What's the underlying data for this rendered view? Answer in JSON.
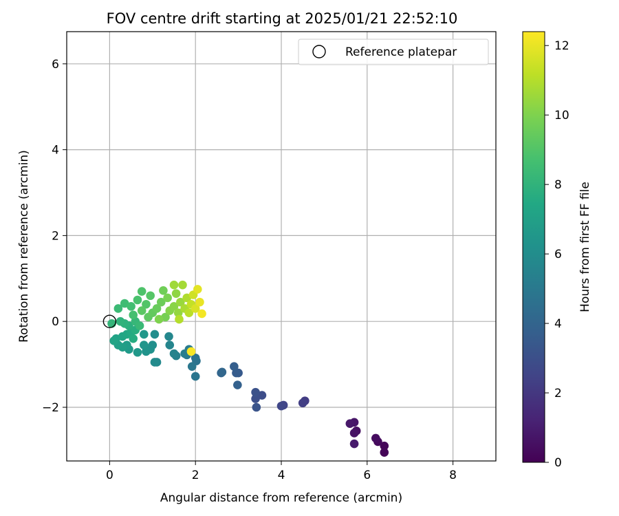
{
  "chart_data": {
    "type": "scatter",
    "title": "FOV centre drift starting at 2025/01/21 22:52:10",
    "xlabel": "Angular distance from reference (arcmin)",
    "ylabel": "Rotation from reference (arcmin)",
    "xlim": [
      -1.0,
      9.0
    ],
    "ylim": [
      -3.25,
      6.75
    ],
    "xticks": [
      0,
      2,
      4,
      6,
      8
    ],
    "yticks": [
      -2,
      0,
      2,
      4,
      6
    ],
    "xtick_labels": [
      "0",
      "2",
      "4",
      "6",
      "8"
    ],
    "ytick_labels": [
      "−2",
      "0",
      "2",
      "4",
      "6"
    ],
    "grid": true,
    "legend": {
      "position": "top-right",
      "entries": [
        "Reference platepar"
      ]
    },
    "reference_point": {
      "x": 0,
      "y": 0,
      "label": "Reference platepar"
    },
    "colorbar": {
      "label": "Hours from first FF file",
      "colormap": "viridis",
      "range": [
        0,
        12.4
      ],
      "ticks": [
        0,
        2,
        4,
        6,
        8,
        10,
        12
      ],
      "tick_labels": [
        "0",
        "2",
        "4",
        "6",
        "8",
        "10",
        "12"
      ]
    },
    "series": [
      {
        "points": [
          [
            6.4,
            -3.05,
            0.1
          ],
          [
            6.4,
            -2.9,
            0.2
          ],
          [
            6.25,
            -2.8,
            0.3
          ],
          [
            6.2,
            -2.72,
            0.4
          ],
          [
            5.75,
            -2.55,
            0.5
          ],
          [
            5.7,
            -2.6,
            0.6
          ],
          [
            5.7,
            -2.35,
            0.7
          ],
          [
            5.6,
            -2.38,
            0.8
          ],
          [
            5.7,
            -2.85,
            0.9
          ],
          [
            4.55,
            -1.85,
            2.2
          ],
          [
            4.5,
            -1.9,
            2.3
          ],
          [
            4.05,
            -1.95,
            2.5
          ],
          [
            4.0,
            -1.97,
            2.6
          ],
          [
            3.55,
            -1.72,
            2.9
          ],
          [
            3.4,
            -1.8,
            3.0
          ],
          [
            3.4,
            -1.65,
            3.1
          ],
          [
            3.42,
            -2.0,
            3.2
          ],
          [
            3.0,
            -1.2,
            3.5
          ],
          [
            2.95,
            -1.2,
            3.6
          ],
          [
            2.9,
            -1.05,
            3.7
          ],
          [
            2.98,
            -1.48,
            3.8
          ],
          [
            2.6,
            -1.2,
            4.0
          ],
          [
            2.62,
            -1.18,
            4.1
          ],
          [
            2.0,
            -0.85,
            4.6
          ],
          [
            2.02,
            -0.92,
            4.7
          ],
          [
            2.0,
            -1.28,
            4.8
          ],
          [
            1.92,
            -1.05,
            4.9
          ],
          [
            1.8,
            -0.78,
            5.0
          ],
          [
            1.85,
            -0.65,
            5.1
          ],
          [
            1.75,
            -0.75,
            5.2
          ],
          [
            1.55,
            -0.8,
            5.4
          ],
          [
            1.5,
            -0.75,
            5.5
          ],
          [
            1.4,
            -0.55,
            5.6
          ],
          [
            1.38,
            -0.35,
            5.7
          ],
          [
            1.1,
            -0.95,
            5.8
          ],
          [
            1.05,
            -0.95,
            5.9
          ],
          [
            1.05,
            -0.3,
            6.0
          ],
          [
            1.0,
            -0.55,
            6.1
          ],
          [
            0.95,
            -0.65,
            6.2
          ],
          [
            0.85,
            -0.7,
            6.3
          ],
          [
            0.8,
            -0.55,
            6.4
          ],
          [
            0.8,
            -0.3,
            6.5
          ],
          [
            0.65,
            -0.72,
            6.6
          ],
          [
            0.45,
            -0.65,
            6.7
          ],
          [
            0.4,
            -0.55,
            6.8
          ],
          [
            0.3,
            -0.6,
            6.9
          ],
          [
            0.2,
            -0.55,
            7.0
          ],
          [
            0.15,
            -0.4,
            7.1
          ],
          [
            0.1,
            -0.45,
            7.2
          ],
          [
            0.3,
            -0.35,
            7.3
          ],
          [
            0.4,
            -0.3,
            7.4
          ],
          [
            0.5,
            -0.25,
            7.5
          ],
          [
            0.55,
            -0.4,
            7.6
          ],
          [
            0.6,
            -0.2,
            7.7
          ],
          [
            0.45,
            -0.1,
            7.8
          ],
          [
            0.35,
            -0.05,
            7.9
          ],
          [
            0.25,
            0.0,
            8.0
          ],
          [
            0.05,
            -0.05,
            8.1
          ],
          [
            0.6,
            0.0,
            8.2
          ],
          [
            0.7,
            -0.1,
            8.3
          ],
          [
            0.2,
            0.3,
            8.4
          ],
          [
            0.35,
            0.42,
            8.5
          ],
          [
            0.5,
            0.35,
            8.6
          ],
          [
            0.55,
            0.15,
            8.7
          ],
          [
            0.65,
            0.5,
            8.8
          ],
          [
            0.75,
            0.7,
            8.9
          ],
          [
            0.85,
            0.4,
            9.0
          ],
          [
            0.95,
            0.6,
            9.1
          ],
          [
            0.75,
            0.25,
            9.2
          ],
          [
            0.9,
            0.1,
            9.3
          ],
          [
            1.0,
            0.2,
            9.4
          ],
          [
            1.1,
            0.3,
            9.5
          ],
          [
            1.2,
            0.45,
            9.6
          ],
          [
            1.25,
            0.72,
            9.7
          ],
          [
            1.3,
            0.1,
            9.8
          ],
          [
            1.35,
            0.55,
            9.9
          ],
          [
            1.15,
            0.05,
            10.0
          ],
          [
            1.4,
            0.25,
            10.1
          ],
          [
            1.5,
            0.35,
            10.2
          ],
          [
            1.55,
            0.65,
            10.3
          ],
          [
            1.6,
            0.2,
            10.4
          ],
          [
            1.65,
            0.45,
            10.5
          ],
          [
            1.5,
            0.85,
            10.6
          ],
          [
            1.7,
            0.85,
            10.7
          ],
          [
            1.75,
            0.3,
            10.8
          ],
          [
            1.8,
            0.55,
            10.9
          ],
          [
            1.62,
            0.05,
            11.0
          ],
          [
            1.85,
            0.2,
            11.1
          ],
          [
            1.9,
            0.4,
            11.3
          ],
          [
            1.95,
            0.62,
            11.5
          ],
          [
            2.0,
            0.3,
            11.7
          ],
          [
            2.05,
            0.75,
            11.9
          ],
          [
            2.1,
            0.45,
            12.0
          ],
          [
            2.15,
            0.18,
            12.2
          ],
          [
            1.9,
            -0.7,
            12.3
          ]
        ]
      }
    ]
  }
}
